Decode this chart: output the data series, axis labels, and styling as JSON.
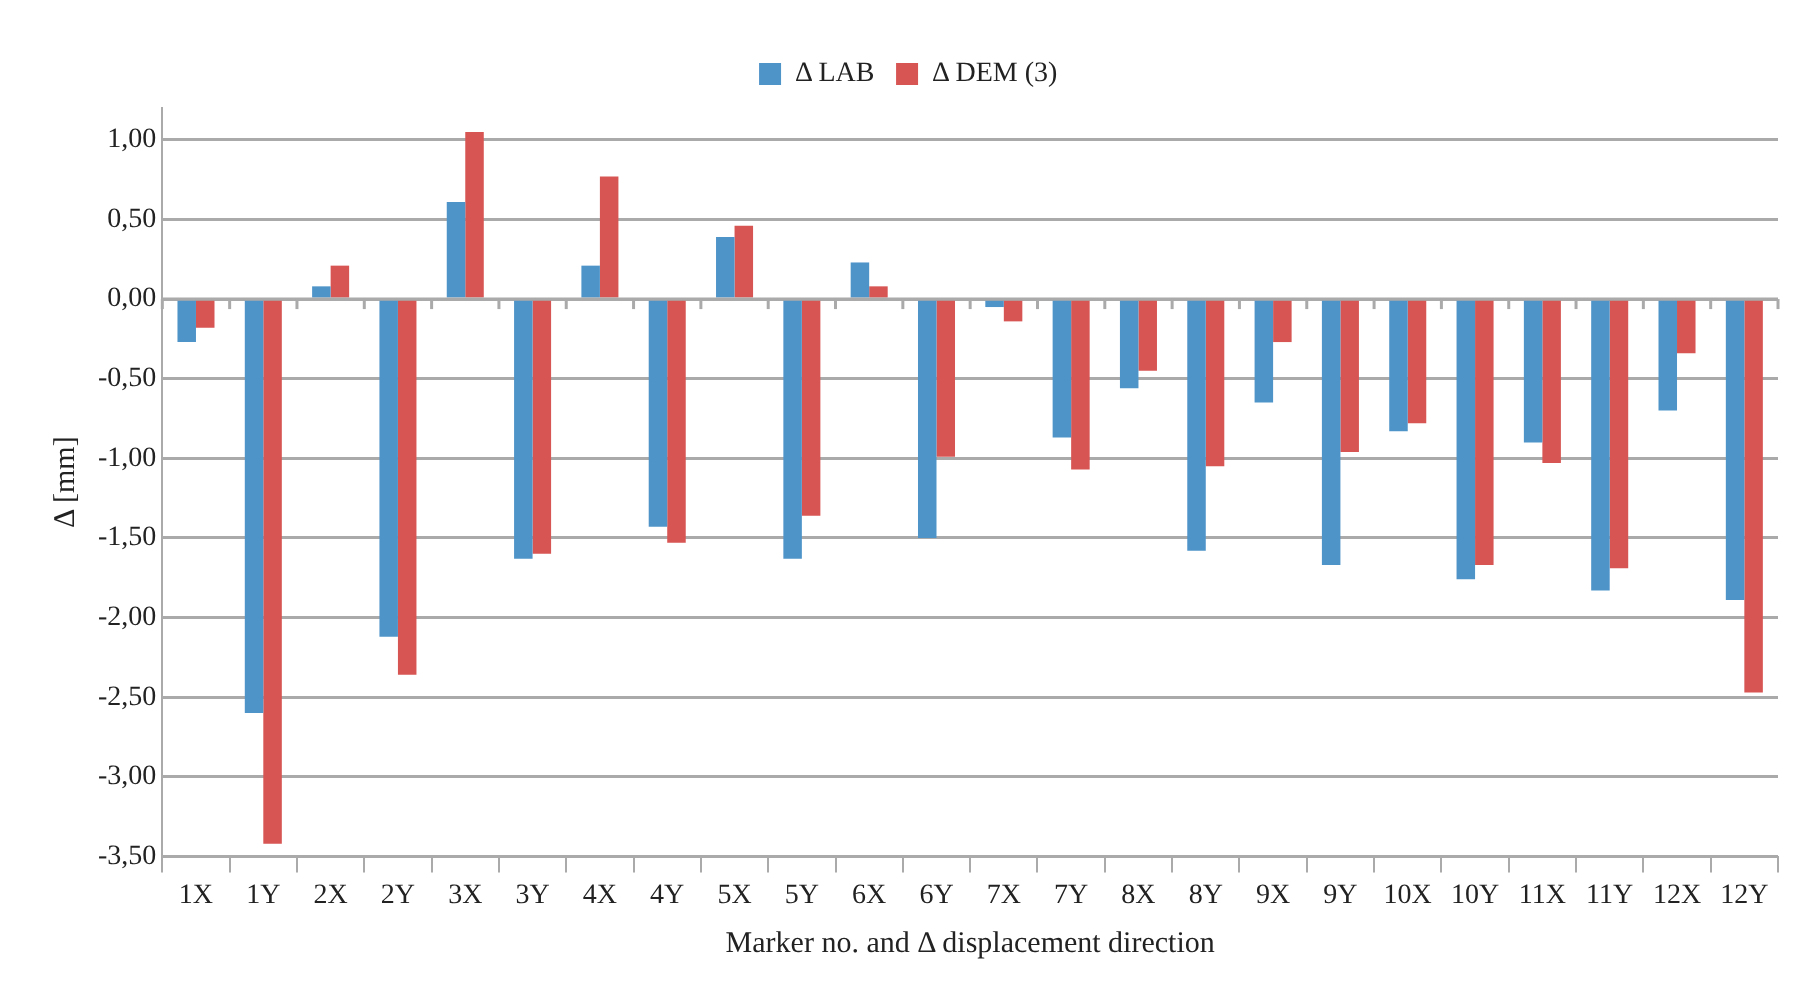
{
  "chart_data": {
    "type": "bar",
    "xlabel": "Marker no. and Δ displacement direction",
    "ylabel": "Δ [mm]",
    "categories": [
      "1X",
      "1Y",
      "2X",
      "2Y",
      "3X",
      "3Y",
      "4X",
      "4Y",
      "5X",
      "5Y",
      "6X",
      "6Y",
      "7X",
      "7Y",
      "8X",
      "8Y",
      "9X",
      "9Y",
      "10X",
      "10Y",
      "11X",
      "11Y",
      "12X",
      "12Y"
    ],
    "series": [
      {
        "name": "Δ LAB",
        "color": "#4f94c9",
        "values": [
          -0.27,
          -2.6,
          0.08,
          -2.12,
          0.61,
          -1.63,
          0.21,
          -1.43,
          0.39,
          -1.63,
          0.23,
          -1.5,
          -0.05,
          -0.87,
          -0.56,
          -1.58,
          -0.65,
          -1.67,
          -0.83,
          -1.76,
          -0.9,
          -1.83,
          -0.7,
          -1.89
        ]
      },
      {
        "name": "Δ DEM (3)",
        "color": "#d75553",
        "values": [
          -0.18,
          -3.42,
          0.21,
          -2.36,
          1.05,
          -1.6,
          0.77,
          -1.53,
          0.46,
          -1.36,
          0.08,
          -0.99,
          -0.14,
          -1.07,
          -0.45,
          -1.05,
          -0.27,
          -0.96,
          -0.78,
          -1.67,
          -1.03,
          -1.69,
          -0.34,
          -2.47
        ]
      }
    ],
    "ylim": [
      -3.5,
      1.2
    ],
    "yticks": [
      {
        "value": -3.5,
        "label": "-3,50"
      },
      {
        "value": -3,
        "label": "-3,00"
      },
      {
        "value": -2.5,
        "label": "-2,50"
      },
      {
        "value": -2,
        "label": "-2,00"
      },
      {
        "value": -1.5,
        "label": "-1,50"
      },
      {
        "value": -1,
        "label": "-1,00"
      },
      {
        "value": -0.5,
        "label": "-0,50"
      },
      {
        "value": 0,
        "label": "0,00"
      },
      {
        "value": 0.5,
        "label": "0,50"
      },
      {
        "value": 1,
        "label": "1,00"
      }
    ],
    "grid": "y",
    "legend": "top"
  }
}
